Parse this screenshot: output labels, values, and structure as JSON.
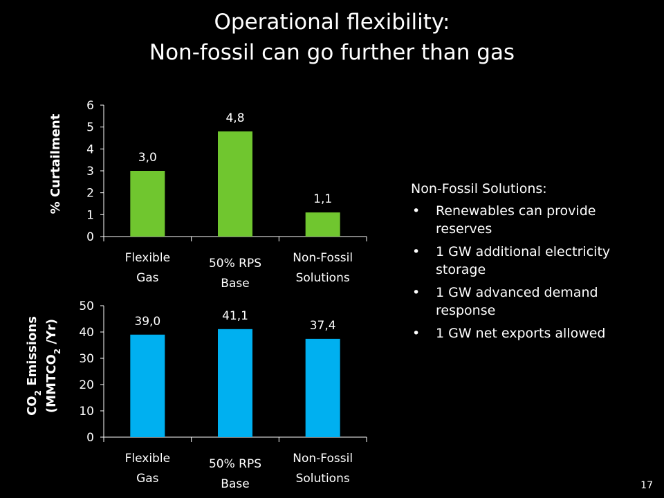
{
  "slide": {
    "title_line1": "Operational flexibility:",
    "title_line2": "Non-fossil can go further than gas",
    "page_number": "17",
    "bullet_glyph": "•"
  },
  "notes": {
    "heading": "Non-Fossil Solutions:",
    "items": [
      "Renewables can provide reserves",
      "1 GW additional electricity storage",
      "1 GW advanced demand response",
      "1 GW net exports allowed"
    ]
  },
  "chart_data": [
    {
      "type": "bar",
      "categories": [
        [
          "Flexible",
          "Gas"
        ],
        [
          "50% RPS",
          "Base"
        ],
        [
          "Non-Fossil",
          "Solutions"
        ]
      ],
      "values": [
        3.0,
        4.8,
        1.1
      ],
      "value_labels": [
        "3,0",
        "4,8",
        "1,1"
      ],
      "ylabel": "% Curtailment",
      "ylim": [
        0,
        6
      ],
      "yticks": [
        0,
        1,
        2,
        3,
        4,
        5,
        6
      ],
      "bar_color": "#70C62F",
      "grid": false
    },
    {
      "type": "bar",
      "categories": [
        [
          "Flexible",
          "Gas"
        ],
        [
          "50% RPS",
          "Base"
        ],
        [
          "Non-Fossil",
          "Solutions"
        ]
      ],
      "values": [
        39.0,
        41.1,
        37.4
      ],
      "value_labels": [
        "39,0",
        "41,1",
        "37,4"
      ],
      "ylabel_line1": "CO2 Emissions",
      "ylabel_line2": "(MMTCO2 /Yr)",
      "ylim": [
        0,
        50
      ],
      "yticks": [
        0,
        10,
        20,
        30,
        40,
        50
      ],
      "bar_color": "#00B0F0",
      "grid": false
    }
  ]
}
